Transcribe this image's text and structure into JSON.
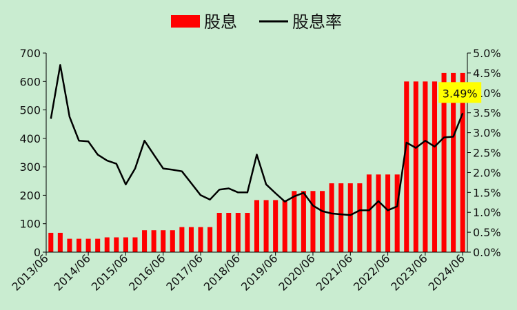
{
  "chart_data": {
    "type": "bar+line",
    "title": "",
    "legend": {
      "placement": "top-center",
      "entries": [
        {
          "label": "股息",
          "kind": "bar",
          "color": "#ff0000"
        },
        {
          "label": "股息率",
          "kind": "line",
          "color": "#000000"
        }
      ]
    },
    "x_tick_labels": [
      "2013/06",
      "2014/06",
      "2015/06",
      "2016/06",
      "2017/06",
      "2018/06",
      "2019/06",
      "2020/06",
      "2021/06",
      "2022/06",
      "2023/06",
      "2024/06"
    ],
    "periods_per_year": 4,
    "series": [
      {
        "name": "股息",
        "axis": "left",
        "values": [
          68,
          68,
          47,
          47,
          47,
          47,
          52,
          52,
          52,
          52,
          77,
          77,
          77,
          77,
          88,
          88,
          88,
          88,
          138,
          138,
          138,
          138,
          183,
          183,
          183,
          183,
          215,
          215,
          215,
          215,
          242,
          242,
          242,
          242,
          273,
          273,
          273,
          273,
          600,
          600,
          600,
          600,
          630,
          630,
          630
        ]
      },
      {
        "name": "股息率",
        "axis": "right",
        "values": [
          3.35,
          4.7,
          3.4,
          2.8,
          2.78,
          2.45,
          2.3,
          2.22,
          1.7,
          2.1,
          2.8,
          2.45,
          2.1,
          2.07,
          2.03,
          1.73,
          1.43,
          1.32,
          1.57,
          1.6,
          1.5,
          1.5,
          2.45,
          1.7,
          1.48,
          1.27,
          1.4,
          1.49,
          1.17,
          1.03,
          0.97,
          0.95,
          0.93,
          1.05,
          1.05,
          1.28,
          1.05,
          1.15,
          2.75,
          2.62,
          2.8,
          2.65,
          2.88,
          2.9,
          3.49
        ]
      }
    ],
    "y_left": {
      "min": 0,
      "max": 700,
      "ticks": [
        0,
        100,
        200,
        300,
        400,
        500,
        600,
        700
      ]
    },
    "y_right": {
      "min": 0,
      "max": 5.0,
      "ticks": [
        "0.0%",
        "0.5%",
        "1.0%",
        "1.5%",
        "2.0%",
        "2.5%",
        "3.0%",
        "3.5%",
        "4.0%",
        "4.5%",
        "5.0%"
      ]
    },
    "annotation": {
      "text": "3.49%",
      "background": "#ffff00"
    },
    "grid": false,
    "colors": {
      "background": "#c9ecd0",
      "bar": "#ff0000",
      "line": "#000000"
    }
  }
}
